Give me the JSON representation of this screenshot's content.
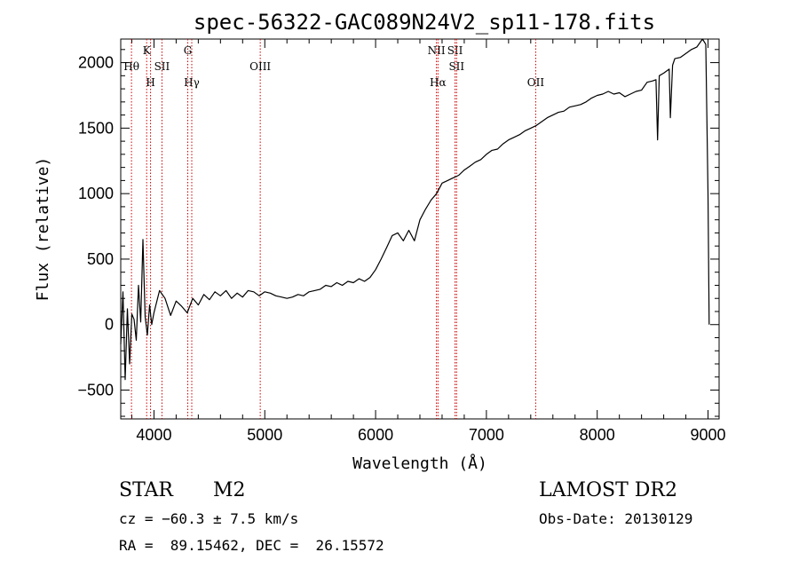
{
  "chart_data": {
    "type": "line",
    "title": "spec-56322-GAC089N24V2_sp11-178.fits",
    "xlabel": "Wavelength (Å)",
    "ylabel": "Flux (relative)",
    "xlim": [
      3700,
      9100
    ],
    "ylim": [
      -720,
      2180
    ],
    "x_ticks": [
      4000,
      5000,
      6000,
      7000,
      8000,
      9000
    ],
    "y_ticks": [
      -500,
      0,
      500,
      1000,
      1500,
      2000
    ],
    "grid": false,
    "series": [
      {
        "x": [
          3700,
          3720,
          3740,
          3760,
          3780,
          3800,
          3820,
          3840,
          3860,
          3880,
          3900,
          3920,
          3940,
          3960,
          3980,
          4000,
          4050,
          4100,
          4150,
          4200,
          4250,
          4300,
          4350,
          4400,
          4450,
          4500,
          4550,
          4600,
          4650,
          4700,
          4750,
          4800,
          4850,
          4900,
          4950,
          5000,
          5050,
          5100,
          5150,
          5200,
          5250,
          5300,
          5350,
          5400,
          5450,
          5500,
          5550,
          5600,
          5650,
          5700,
          5750,
          5800,
          5850,
          5900,
          5950,
          6000,
          6050,
          6100,
          6150,
          6200,
          6250,
          6300,
          6350,
          6400,
          6450,
          6500,
          6550,
          6600,
          6650,
          6700,
          6750,
          6800,
          6850,
          6900,
          6950,
          7000,
          7050,
          7100,
          7150,
          7200,
          7250,
          7300,
          7350,
          7400,
          7450,
          7500,
          7550,
          7600,
          7650,
          7700,
          7750,
          7800,
          7850,
          7900,
          7950,
          8000,
          8050,
          8100,
          8150,
          8200,
          8250,
          8300,
          8350,
          8400,
          8450,
          8500,
          8530,
          8545,
          8560,
          8600,
          8650,
          8660,
          8680,
          8700,
          8750,
          8800,
          8850,
          8900,
          8950,
          8980,
          9000,
          9010
        ],
        "y": [
          -150,
          250,
          -420,
          120,
          -300,
          80,
          40,
          -120,
          300,
          20,
          650,
          60,
          -80,
          150,
          0,
          90,
          260,
          200,
          70,
          180,
          140,
          90,
          200,
          150,
          230,
          190,
          250,
          220,
          260,
          200,
          240,
          210,
          260,
          250,
          220,
          250,
          240,
          220,
          210,
          200,
          210,
          230,
          220,
          250,
          260,
          270,
          300,
          290,
          320,
          300,
          330,
          320,
          350,
          330,
          360,
          420,
          500,
          590,
          680,
          700,
          640,
          720,
          640,
          800,
          880,
          950,
          1000,
          1080,
          1100,
          1120,
          1140,
          1180,
          1210,
          1240,
          1260,
          1300,
          1330,
          1340,
          1380,
          1410,
          1430,
          1450,
          1480,
          1500,
          1520,
          1550,
          1580,
          1600,
          1620,
          1630,
          1660,
          1670,
          1680,
          1700,
          1730,
          1750,
          1760,
          1780,
          1760,
          1770,
          1740,
          1760,
          1780,
          1790,
          1850,
          1860,
          1870,
          1410,
          1900,
          1920,
          1950,
          1580,
          1980,
          2030,
          2040,
          2070,
          2100,
          2120,
          2180,
          2140,
          1000,
          0
        ]
      }
    ],
    "lines": [
      {
        "label": "Hθ",
        "x": 3797,
        "row": 1
      },
      {
        "label": "K",
        "x": 3934,
        "row": 0
      },
      {
        "label": "H",
        "x": 3969,
        "row": 2
      },
      {
        "label": "SII",
        "x": 4072,
        "row": 1
      },
      {
        "label": "G",
        "x": 4305,
        "row": 0
      },
      {
        "label": "Hγ",
        "x": 4341,
        "row": 2
      },
      {
        "label": "OIII",
        "x": 4959,
        "row": 1
      },
      {
        "label": "NII",
        "x": 6549,
        "row": 0
      },
      {
        "label": "Hα",
        "x": 6563,
        "row": 2
      },
      {
        "label": "SII",
        "x": 6717,
        "row": 0
      },
      {
        "label": "SII",
        "x": 6731,
        "row": 1
      },
      {
        "label": "OII",
        "x": 7445,
        "row": 2
      }
    ]
  },
  "footer": {
    "object_class": "STAR",
    "subclass": "M2",
    "survey": "LAMOST DR2",
    "cz": "cz = −60.3 ± 7.5 km/s",
    "obs_date": "Obs-Date: 20130129",
    "coords": "RA =  89.15462, DEC =  26.15572"
  },
  "colors": {
    "line_marker": "#cc0000",
    "spectrum": "#000000"
  }
}
